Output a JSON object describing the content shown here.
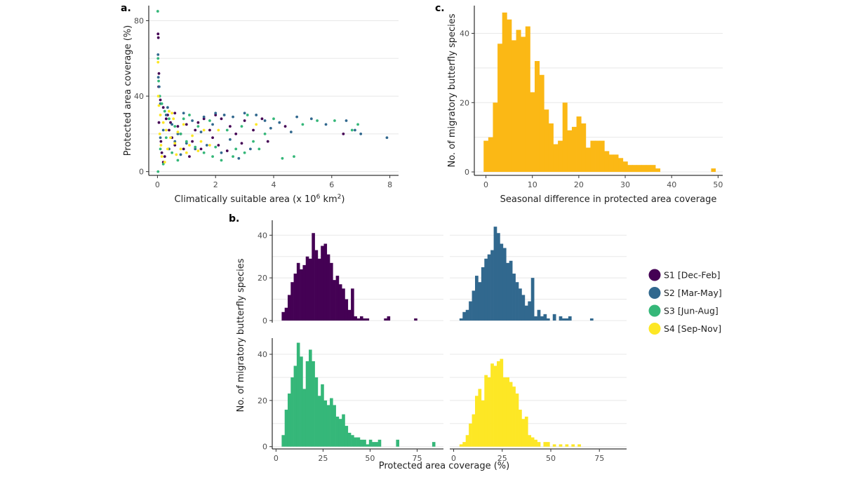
{
  "figure": {
    "panel_letters": {
      "a": "a.",
      "b": "b.",
      "c": "c."
    }
  },
  "chart_data": [
    {
      "id": "panel_a",
      "type": "scatter",
      "title": "",
      "xlabel": "Climatically suitable area (x 10",
      "xlabel_sup": "6",
      "xlabel_suffix": " km",
      "xlabel_sup2": "2",
      "xlabel_end": ")",
      "ylabel": "Protected area coverage (%)",
      "xlim": [
        -0.3,
        8.3
      ],
      "ylim": [
        -2,
        88
      ],
      "xticks": [
        0,
        2,
        4,
        6,
        8
      ],
      "yticks": [
        0,
        40,
        80
      ],
      "grid": true,
      "series": [
        {
          "name": "S1 [Dec-Feb]",
          "color": "#440154",
          "points": [
            [
              0.02,
              73
            ],
            [
              0.03,
              71
            ],
            [
              0.05,
              52
            ],
            [
              0.04,
              45
            ],
            [
              0.1,
              38
            ],
            [
              0.2,
              34
            ],
            [
              0.3,
              28
            ],
            [
              0.4,
              22
            ],
            [
              0.5,
              18
            ],
            [
              0.6,
              14
            ],
            [
              0.8,
              20
            ],
            [
              1.0,
              25
            ],
            [
              1.2,
              16
            ],
            [
              1.5,
              12
            ],
            [
              1.8,
              22
            ],
            [
              2.0,
              30
            ],
            [
              2.2,
              28
            ],
            [
              2.5,
              24
            ],
            [
              2.7,
              20
            ],
            [
              3.0,
              27
            ],
            [
              3.3,
              22
            ],
            [
              3.6,
              28
            ],
            [
              4.4,
              24
            ],
            [
              6.4,
              20
            ],
            [
              0.15,
              10
            ],
            [
              0.25,
              8
            ],
            [
              0.35,
              30
            ],
            [
              0.45,
              26
            ],
            [
              0.7,
              24
            ],
            [
              0.9,
              12
            ],
            [
              1.1,
              8
            ],
            [
              1.3,
              22
            ],
            [
              1.6,
              28
            ],
            [
              1.9,
              18
            ],
            [
              2.4,
              11
            ],
            [
              2.9,
              15
            ],
            [
              0.05,
              26
            ],
            [
              0.12,
              16
            ],
            [
              0.2,
              5
            ],
            [
              0.6,
              31
            ],
            [
              1.4,
              26
            ],
            [
              2.1,
              14
            ],
            [
              3.8,
              16
            ]
          ]
        },
        {
          "name": "S2 [Mar-May]",
          "color": "#31688e",
          "points": [
            [
              0.02,
              62
            ],
            [
              0.03,
              50
            ],
            [
              0.06,
              45
            ],
            [
              0.1,
              36
            ],
            [
              0.3,
              30
            ],
            [
              0.5,
              25
            ],
            [
              0.7,
              20
            ],
            [
              1.0,
              15
            ],
            [
              1.3,
              12
            ],
            [
              1.6,
              29
            ],
            [
              2.0,
              31
            ],
            [
              2.3,
              30
            ],
            [
              2.6,
              29
            ],
            [
              3.0,
              31
            ],
            [
              3.4,
              30
            ],
            [
              3.7,
              27
            ],
            [
              4.2,
              26
            ],
            [
              4.8,
              29
            ],
            [
              5.3,
              28
            ],
            [
              6.5,
              27
            ],
            [
              6.8,
              22
            ],
            [
              7.0,
              20
            ],
            [
              7.9,
              18
            ],
            [
              0.2,
              22
            ],
            [
              0.4,
              12
            ],
            [
              0.8,
              9
            ],
            [
              1.2,
              27
            ],
            [
              1.7,
              14
            ],
            [
              2.2,
              10
            ],
            [
              2.8,
              7
            ],
            [
              3.2,
              12
            ],
            [
              0.1,
              18
            ],
            [
              0.6,
              16
            ],
            [
              1.5,
              21
            ],
            [
              2.5,
              17
            ],
            [
              3.9,
              23
            ],
            [
              4.6,
              21
            ],
            [
              5.8,
              25
            ],
            [
              0.35,
              34
            ],
            [
              0.9,
              31
            ],
            [
              1.9,
              25
            ]
          ]
        },
        {
          "name": "S3 [Jun-Aug]",
          "color": "#35b779",
          "points": [
            [
              0.01,
              85
            ],
            [
              0.02,
              60
            ],
            [
              0.04,
              48
            ],
            [
              0.08,
              40
            ],
            [
              0.15,
              36
            ],
            [
              0.25,
              32
            ],
            [
              0.4,
              28
            ],
            [
              0.6,
              24
            ],
            [
              0.8,
              20
            ],
            [
              1.0,
              16
            ],
            [
              1.3,
              13
            ],
            [
              1.6,
              10
            ],
            [
              1.9,
              8
            ],
            [
              2.2,
              6
            ],
            [
              2.6,
              8
            ],
            [
              3.0,
              10
            ],
            [
              3.5,
              12
            ],
            [
              4.3,
              7
            ],
            [
              4.7,
              8
            ],
            [
              5.5,
              27
            ],
            [
              6.1,
              27
            ],
            [
              6.7,
              22
            ],
            [
              6.9,
              25
            ],
            [
              0.3,
              18
            ],
            [
              0.5,
              10
            ],
            [
              0.7,
              6
            ],
            [
              1.1,
              30
            ],
            [
              1.4,
              24
            ],
            [
              1.8,
              27
            ],
            [
              2.4,
              22
            ],
            [
              2.9,
              24
            ],
            [
              3.3,
              16
            ],
            [
              3.7,
              20
            ],
            [
              0.02,
              0
            ],
            [
              0.1,
              12
            ],
            [
              0.2,
              4
            ],
            [
              0.9,
              28
            ],
            [
              2.0,
              13
            ],
            [
              2.7,
              12
            ],
            [
              3.1,
              30
            ],
            [
              4.0,
              28
            ],
            [
              5.0,
              25
            ]
          ]
        },
        {
          "name": "S4 [Sep-Nov]",
          "color": "#fde725",
          "points": [
            [
              0.02,
              58
            ],
            [
              0.03,
              40
            ],
            [
              0.05,
              35
            ],
            [
              0.1,
              30
            ],
            [
              0.2,
              26
            ],
            [
              0.3,
              22
            ],
            [
              0.45,
              18
            ],
            [
              0.6,
              15
            ],
            [
              0.8,
              12
            ],
            [
              1.0,
              10
            ],
            [
              1.2,
              19
            ],
            [
              1.5,
              16
            ],
            [
              1.8,
              14
            ],
            [
              2.1,
              22
            ],
            [
              0.15,
              8
            ],
            [
              0.25,
              5
            ],
            [
              0.4,
              32
            ],
            [
              0.55,
              28
            ],
            [
              0.7,
              21
            ],
            [
              0.9,
              25
            ],
            [
              1.1,
              14
            ],
            [
              1.4,
              11
            ],
            [
              0.08,
              20
            ],
            [
              0.35,
              12
            ],
            [
              0.65,
              9
            ],
            [
              1.6,
              22
            ],
            [
              3.4,
              25
            ],
            [
              0.5,
              31
            ],
            [
              0.12,
              14
            ]
          ]
        }
      ]
    },
    {
      "id": "panel_c",
      "type": "bar",
      "title": "",
      "xlabel": "Seasonal difference in protected area coverage",
      "ylabel": "No. of migratory butterfly species",
      "xlim": [
        -2.5,
        51
      ],
      "ylim": [
        -1,
        48
      ],
      "xticks": [
        0,
        10,
        20,
        30,
        40,
        50
      ],
      "yticks": [
        0,
        20,
        40
      ],
      "grid": true,
      "color": "#fbb815",
      "bin_start": -0.5,
      "bin_width": 1,
      "values": [
        9,
        10,
        20,
        37,
        46,
        44,
        38,
        41,
        39,
        42,
        23,
        32,
        28,
        18,
        14,
        8,
        9,
        20,
        12,
        13,
        16,
        14,
        7,
        9,
        9,
        9,
        6,
        5,
        5,
        4,
        3,
        2,
        2,
        2,
        2,
        2,
        2,
        1,
        0,
        0,
        0,
        0,
        0,
        0,
        0,
        0,
        0,
        0,
        0,
        0,
        0,
        0,
        0,
        0,
        0,
        0,
        0,
        0,
        0,
        0,
        0,
        0,
        0,
        0,
        0,
        0,
        0,
        0,
        0,
        0,
        0,
        0,
        0,
        0,
        0,
        0,
        0,
        0,
        0,
        0
      ],
      "extra_bars": [
        {
          "x": 29.5,
          "width": 2,
          "value": 1
        },
        {
          "x": 31.5,
          "width": 2,
          "value": 1
        },
        {
          "x": 33.5,
          "width": 1.5,
          "value": 1
        },
        {
          "x": 48.5,
          "width": 1,
          "value": 1
        }
      ]
    },
    {
      "id": "panel_b",
      "type": "bar",
      "title": "",
      "xlabel": "Protected area coverage (%)",
      "ylabel": "No. of migratory butterfly species",
      "xlim": [
        -2,
        89
      ],
      "ylim": [
        -1,
        47
      ],
      "xticks": [
        0,
        25,
        50,
        75
      ],
      "yticks": [
        0,
        20,
        40
      ],
      "grid": true,
      "bin_width": 1.6,
      "facets": [
        {
          "name": "S1 [Dec-Feb]",
          "color": "#440154",
          "row": 0,
          "col": 0,
          "bin_start": 3,
          "values": [
            4,
            6,
            12,
            18,
            22,
            27,
            24,
            26,
            30,
            29,
            41,
            33,
            29,
            35,
            36,
            31,
            27,
            19,
            21,
            17,
            15,
            10,
            5,
            15,
            2,
            1,
            2,
            1,
            1,
            0,
            0,
            0,
            0,
            0,
            1,
            2,
            0,
            0,
            0,
            0,
            0,
            0,
            0,
            0,
            1
          ]
        },
        {
          "name": "S2 [Mar-May]",
          "color": "#31688e",
          "row": 0,
          "col": 1,
          "bin_start": 3,
          "values": [
            1,
            4,
            5,
            9,
            14,
            21,
            18,
            25,
            29,
            31,
            33,
            44,
            41,
            36,
            34,
            27,
            28,
            22,
            18,
            15,
            12,
            7,
            9,
            20,
            2,
            5,
            2,
            3,
            1,
            0,
            3,
            0,
            2,
            1,
            1,
            2,
            0,
            0,
            0,
            0,
            0,
            0,
            1
          ]
        },
        {
          "name": "S3 [Jun-Aug]",
          "color": "#35b779",
          "row": 1,
          "col": 0,
          "bin_start": 3,
          "values": [
            5,
            16,
            23,
            30,
            35,
            45,
            39,
            25,
            37,
            42,
            37,
            30,
            22,
            27,
            20,
            18,
            21,
            18,
            13,
            12,
            14,
            9,
            6,
            5,
            4,
            4,
            3,
            3,
            1,
            3,
            2,
            2,
            3,
            0,
            0,
            0,
            0,
            0,
            3,
            0,
            0,
            0,
            0,
            0,
            0,
            0,
            0,
            0,
            0,
            0,
            2
          ]
        },
        {
          "name": "S4 [Sep-Nov]",
          "color": "#fde725",
          "row": 1,
          "col": 1,
          "bin_start": 3,
          "values": [
            1,
            2,
            5,
            10,
            14,
            22,
            25,
            20,
            31,
            30,
            36,
            35,
            37,
            38,
            30,
            30,
            28,
            26,
            23,
            16,
            12,
            13,
            5,
            4,
            3,
            2,
            0,
            2,
            2,
            0,
            1,
            0,
            1,
            0,
            1,
            0,
            1,
            0,
            1,
            0,
            0,
            0
          ]
        }
      ]
    }
  ],
  "legend": {
    "items": [
      {
        "label": "S1 [Dec-Feb]",
        "color": "#440154"
      },
      {
        "label": "S2 [Mar-May]",
        "color": "#31688e"
      },
      {
        "label": "S3 [Jun-Aug]",
        "color": "#35b779"
      },
      {
        "label": "S4 [Sep-Nov]",
        "color": "#fde725"
      }
    ]
  }
}
